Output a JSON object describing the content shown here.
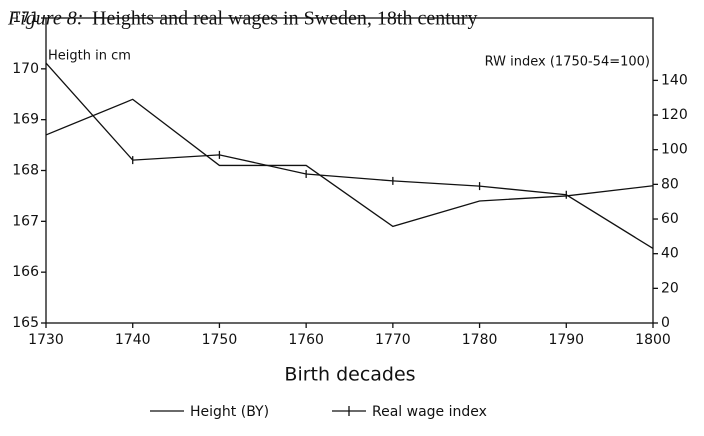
{
  "chart_data": {
    "type": "line",
    "figure_label": "Figure 8:",
    "title": "Heights and real wages in Sweden, 18th century",
    "y_label": "Heigth in cm",
    "y2_label": "RW index (1750-54=100)",
    "x_label": "Birth decades",
    "x": [
      1730,
      1740,
      1750,
      1760,
      1770,
      1780,
      1790,
      1800
    ],
    "xlim": [
      1730,
      1800
    ],
    "xticks": [
      1730,
      1740,
      1750,
      1760,
      1770,
      1780,
      1790,
      1800
    ],
    "ylim": [
      165,
      171
    ],
    "yticks": [
      165,
      166,
      167,
      168,
      169,
      170,
      171
    ],
    "y2lim": [
      0,
      176
    ],
    "y2ticks": [
      0,
      20,
      40,
      60,
      80,
      100,
      120,
      140
    ],
    "series": [
      {
        "name": "Height (BY)",
        "color": "#111111",
        "marker": "none",
        "values": [
          168.7,
          169.4,
          168.1,
          168.1,
          166.9,
          167.4,
          167.5,
          167.7
        ]
      },
      {
        "name": "Real wage index",
        "color": "#111111",
        "marker": "cross",
        "axis": "y2",
        "values": [
          150,
          94,
          97,
          86,
          82,
          79,
          74,
          43
        ]
      }
    ],
    "legend": "bottom"
  }
}
